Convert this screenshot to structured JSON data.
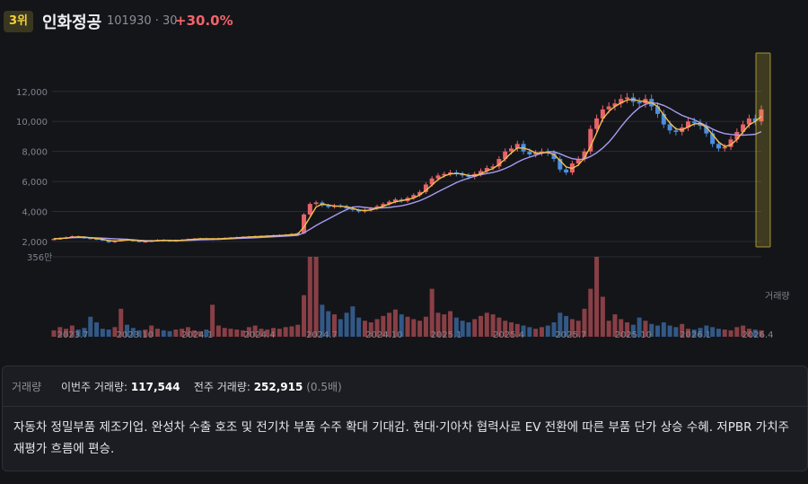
{
  "header": {
    "rank": "3위",
    "name": "인화정공",
    "code_meta": "101930 · 30",
    "change": "+30.0%"
  },
  "colors": {
    "up": "#e8626a",
    "down": "#4a8fe0",
    "ma_short": "#f2c14e",
    "ma_long": "#a99cf0",
    "highlight": "#d6c23a"
  },
  "chart_data": {
    "type": "candlestick",
    "y_ticks": [
      "12,000",
      "10,000",
      "8,000",
      "6,000",
      "4,000",
      "2,000"
    ],
    "y_tick_values": [
      12000,
      10000,
      8000,
      6000,
      4000,
      2000
    ],
    "ylim": [
      1400,
      14500
    ],
    "x_tick_labels": [
      "2023.7",
      "2023.10",
      "2024.1",
      "2024.4",
      "2024.7",
      "2024.10",
      "2025.1",
      "2025.4",
      "2025.7",
      "2025.10",
      "2026.1",
      "2026.4"
    ],
    "volume_max_label": "356만",
    "volume_axis_label": "거래량",
    "close_series": [
      2180,
      2220,
      2280,
      2350,
      2300,
      2250,
      2200,
      2150,
      2100,
      1950,
      2050,
      2150,
      2100,
      2050,
      2000,
      2020,
      2060,
      2100,
      2080,
      2050,
      2080,
      2120,
      2150,
      2180,
      2200,
      2160,
      2180,
      2200,
      2220,
      2250,
      2280,
      2300,
      2320,
      2340,
      2360,
      2380,
      2400,
      2420,
      2450,
      2500,
      2550,
      3800,
      4500,
      4600,
      4400,
      4300,
      4400,
      4350,
      4200,
      4100,
      4000,
      4100,
      4200,
      4350,
      4500,
      4650,
      4800,
      4700,
      4900,
      5100,
      5300,
      5800,
      6200,
      6400,
      6500,
      6600,
      6500,
      6400,
      6300,
      6500,
      6700,
      6900,
      7000,
      7500,
      8000,
      8200,
      8500,
      8000,
      7800,
      7900,
      8000,
      7900,
      7500,
      6800,
      6600,
      7200,
      7500,
      8000,
      9500,
      10200,
      10800,
      11000,
      11200,
      11500,
      11600,
      11300,
      11200,
      11500,
      11000,
      10500,
      9800,
      9400,
      9300,
      9600,
      10000,
      9900,
      9700,
      9200,
      8500,
      8200,
      8300,
      8800,
      9300,
      9800,
      10200,
      10000,
      10800
    ],
    "volumes": [
      8,
      12,
      10,
      14,
      9,
      11,
      25,
      18,
      10,
      9,
      12,
      35,
      15,
      11,
      8,
      9,
      14,
      10,
      8,
      7,
      9,
      10,
      12,
      8,
      7,
      9,
      40,
      14,
      11,
      10,
      9,
      8,
      12,
      14,
      10,
      9,
      11,
      10,
      12,
      13,
      15,
      52,
      100,
      100,
      40,
      32,
      28,
      22,
      30,
      38,
      24,
      20,
      18,
      22,
      26,
      30,
      34,
      28,
      25,
      22,
      20,
      25,
      60,
      30,
      28,
      32,
      24,
      20,
      18,
      22,
      26,
      30,
      28,
      24,
      20,
      18,
      16,
      14,
      12,
      10,
      12,
      14,
      18,
      30,
      26,
      22,
      20,
      35,
      60,
      100,
      50,
      20,
      28,
      22,
      18,
      15,
      24,
      20,
      16,
      14,
      18,
      14,
      12,
      16,
      10,
      9,
      11,
      14,
      12,
      10,
      9,
      8,
      12,
      14,
      10,
      9,
      8
    ]
  },
  "volume_panel": {
    "label": "거래량",
    "this_week_label": "이번주 거래량:",
    "this_week_value": "117,544",
    "last_week_label": "전주 거래량:",
    "last_week_value": "252,915",
    "ratio": "(0.5배)"
  },
  "description": "자동차 정밀부품 제조기업. 완성차 수출 호조 및 전기차 부품 수주 확대 기대감. 현대·기아차 협력사로 EV 전환에 따른 부품 단가 상승 수혜. 저PBR 가치주 재평가 흐름에 편승."
}
